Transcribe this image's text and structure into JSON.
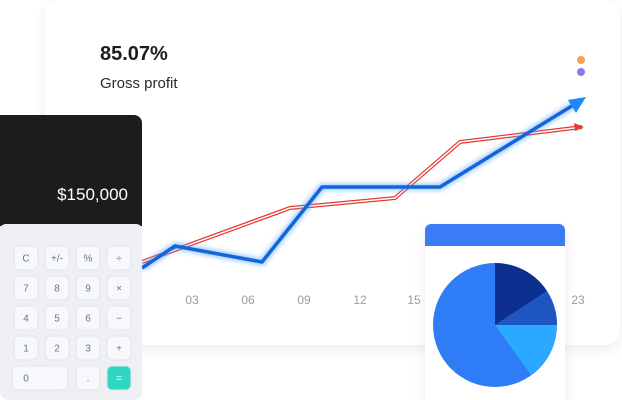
{
  "card": {
    "value": "85.07%",
    "label": "Gross profit",
    "x_labels": [
      "03",
      "06",
      "09",
      "12",
      "15",
      "23"
    ]
  },
  "calculator": {
    "display": "$150,000",
    "keys": [
      "C",
      "+/-",
      "%",
      "÷",
      "7",
      "8",
      "9",
      "×",
      "4",
      "5",
      "6",
      "−",
      "1",
      "2",
      "3",
      "+",
      "0",
      ".",
      "="
    ]
  }
}
